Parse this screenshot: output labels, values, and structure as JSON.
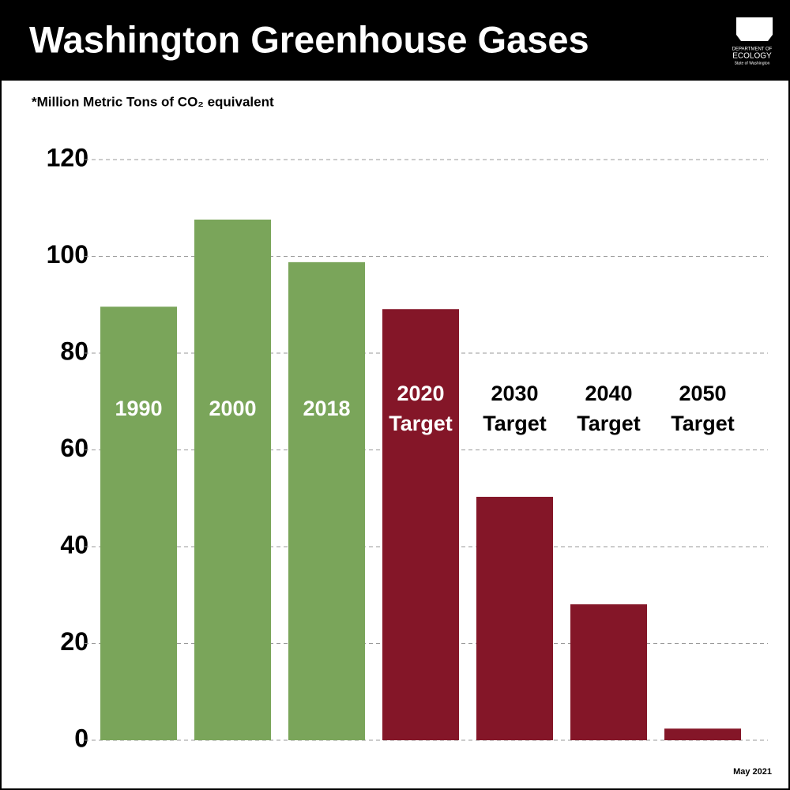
{
  "chart_data": {
    "type": "bar",
    "title": "Washington Greenhouse Gases",
    "subtitle": "*Million Metric Tons of CO₂ equivalent",
    "footnote": "May 2021",
    "logo": [
      "DEPARTMENT OF",
      "ECOLOGY",
      "State of Washington"
    ],
    "categories": [
      "1990",
      "2000",
      "2018",
      "2020 Target",
      "2030 Target",
      "2040 Target",
      "2050 Target"
    ],
    "values": [
      89.6,
      107.6,
      98.8,
      89.1,
      50.3,
      28.1,
      2.4
    ],
    "colors": [
      "#7aa55a",
      "#7aa55a",
      "#7aa55a",
      "#841628",
      "#841628",
      "#841628",
      "#841628"
    ],
    "ylim": [
      0,
      120
    ],
    "yticks": [
      0,
      20,
      40,
      60,
      80,
      100,
      120
    ],
    "grid": true
  }
}
